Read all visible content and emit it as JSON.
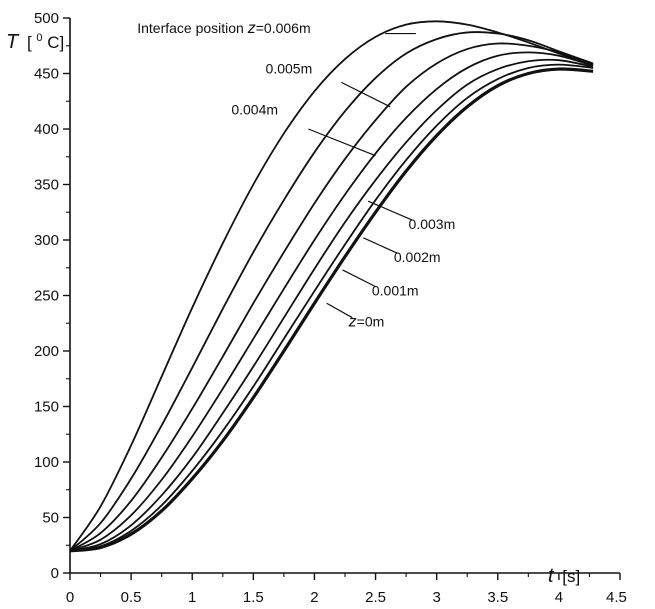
{
  "chart_data": {
    "type": "line",
    "xlim": [
      0,
      4.5
    ],
    "ylim": [
      0,
      500
    ],
    "x_ticks": [
      "0",
      "0.5",
      "1",
      "1.5",
      "2",
      "2.5",
      "3",
      "3.5",
      "4",
      "4.5"
    ],
    "y_ticks": [
      "0",
      "50",
      "100",
      "150",
      "200",
      "250",
      "300",
      "350",
      "400",
      "450",
      "500"
    ],
    "xlabel": {
      "symbol": "t",
      "unit": "[s]"
    },
    "ylabel": {
      "symbol": "T",
      "unit_open": "[",
      "unit_sup": "0",
      "unit_close": "C]"
    },
    "grid": false,
    "legend": "none",
    "series_color": "#111111",
    "series": [
      {
        "name": "z=0m",
        "x": [
          0,
          0.25,
          0.5,
          0.75,
          1,
          1.25,
          1.5,
          1.75,
          2,
          2.25,
          2.5,
          2.75,
          3,
          3.25,
          3.5,
          3.75,
          4,
          4.28
        ],
        "y": [
          20,
          23,
          35,
          56,
          85,
          119,
          158,
          200,
          243,
          285,
          325,
          362,
          394,
          420,
          439,
          450,
          454,
          452
        ]
      },
      {
        "name": "0.001m",
        "x": [
          0,
          0.25,
          0.5,
          0.75,
          1,
          1.25,
          1.5,
          1.75,
          2,
          2.25,
          2.5,
          2.75,
          3,
          3.25,
          3.5,
          3.75,
          4,
          4.28
        ],
        "y": [
          20,
          24,
          38,
          61,
          92,
          128,
          168,
          211,
          254,
          296,
          336,
          372,
          403,
          428,
          445,
          455,
          458,
          455
        ]
      },
      {
        "name": "0.002m",
        "x": [
          0,
          0.25,
          0.5,
          0.75,
          1,
          1.25,
          1.5,
          1.75,
          2,
          2.25,
          2.5,
          2.75,
          3,
          3.25,
          3.5,
          3.75,
          4,
          4.28
        ],
        "y": [
          20,
          26,
          43,
          70,
          104,
          144,
          186,
          230,
          274,
          316,
          354,
          388,
          417,
          440,
          454,
          461,
          462,
          456
        ]
      },
      {
        "name": "0.003m",
        "x": [
          0,
          0.25,
          0.5,
          0.75,
          1,
          1.25,
          1.5,
          1.75,
          2,
          2.25,
          2.5,
          2.75,
          3,
          3.25,
          3.5,
          3.75,
          4,
          4.28
        ],
        "y": [
          20,
          30,
          52,
          84,
          123,
          166,
          211,
          256,
          300,
          341,
          378,
          410,
          436,
          455,
          466,
          469,
          466,
          457
        ]
      },
      {
        "name": "0.004m",
        "x": [
          0,
          0.25,
          0.5,
          0.75,
          1,
          1.25,
          1.5,
          1.75,
          2,
          2.25,
          2.5,
          2.75,
          3,
          3.25,
          3.5,
          3.75,
          4,
          4.28
        ],
        "y": [
          20,
          36,
          65,
          104,
          148,
          195,
          243,
          289,
          333,
          373,
          408,
          438,
          459,
          472,
          477,
          475,
          469,
          458
        ]
      },
      {
        "name": "0.005m",
        "x": [
          0,
          0.25,
          0.5,
          0.75,
          1,
          1.25,
          1.5,
          1.75,
          2,
          2.25,
          2.5,
          2.75,
          3,
          3.25,
          3.5,
          3.75,
          4,
          4.28
        ],
        "y": [
          20,
          45,
          85,
          133,
          185,
          238,
          289,
          336,
          379,
          416,
          446,
          468,
          481,
          487,
          486,
          480,
          470,
          459
        ]
      },
      {
        "name": "0.006m",
        "x": [
          0,
          0.25,
          0.5,
          0.75,
          1,
          1.25,
          1.5,
          1.75,
          2,
          2.25,
          2.5,
          2.75,
          3,
          3.25,
          3.5,
          3.75,
          4,
          4.28
        ],
        "y": [
          20,
          60,
          115,
          177,
          239,
          297,
          350,
          396,
          434,
          463,
          483,
          494,
          497,
          494,
          487,
          478,
          468,
          458
        ]
      }
    ],
    "annotations": [
      {
        "text_pre": "Interface position ",
        "text_italic": "z",
        "text_post": "=0.006m",
        "label_at": [
          0.55,
          486.5
        ],
        "line_from": [
          2.58,
          486
        ],
        "line_to": [
          2.83,
          486
        ]
      },
      {
        "text_pre": "",
        "text_italic": "",
        "text_post": "0.005m",
        "label_at": [
          1.6,
          450
        ],
        "line_from": [
          2.22,
          442
        ],
        "line_to": [
          2.62,
          420
        ]
      },
      {
        "text_pre": "",
        "text_italic": "",
        "text_post": "0.004m",
        "label_at": [
          1.32,
          413
        ],
        "line_from": [
          1.95,
          400
        ],
        "line_to": [
          2.5,
          376
        ]
      },
      {
        "text_pre": "",
        "text_italic": "",
        "text_post": "0.003m",
        "label_at": [
          2.77,
          310
        ],
        "line_from": [
          2.8,
          318
        ],
        "line_to": [
          2.44,
          335
        ]
      },
      {
        "text_pre": "",
        "text_italic": "",
        "text_post": "0.002m",
        "label_at": [
          2.65,
          280
        ],
        "line_from": [
          2.68,
          288
        ],
        "line_to": [
          2.4,
          302
        ]
      },
      {
        "text_pre": "",
        "text_italic": "",
        "text_post": "0.001m",
        "label_at": [
          2.47,
          250
        ],
        "line_from": [
          2.5,
          258
        ],
        "line_to": [
          2.23,
          273
        ]
      },
      {
        "text_pre": "",
        "text_italic": "z",
        "text_post": "=0m",
        "label_at": [
          2.28,
          222
        ],
        "line_from": [
          2.31,
          230
        ],
        "line_to": [
          2.1,
          243
        ]
      }
    ]
  }
}
